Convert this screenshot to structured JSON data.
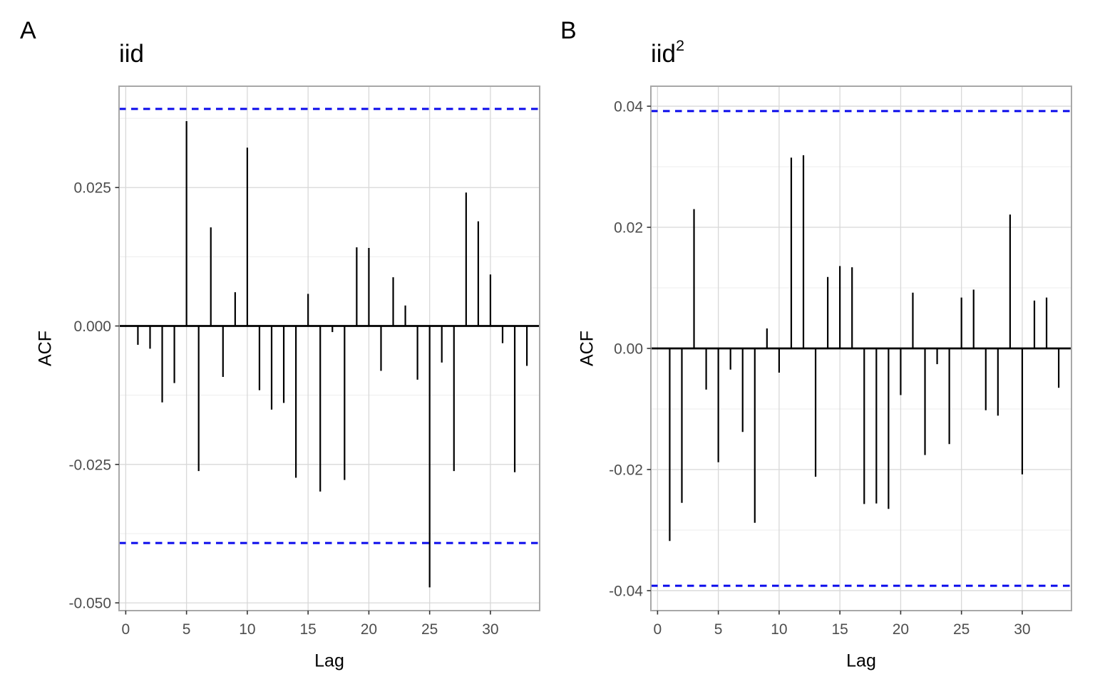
{
  "figure": {
    "background": "#FFFFFF",
    "bar_color": "#000000",
    "zero_line_color": "#000000",
    "conf_line_color": "#0B0BEB",
    "grid_major_color": "#D8D8D8",
    "grid_minor_color": "#EDEDED",
    "panel_border_color": "#A8A8A8",
    "tick_mark_color": "#333333",
    "tick_label_color": "#4D4D4D",
    "axis_title_color": "#000000"
  },
  "chart_data": [
    {
      "type": "bar",
      "panel_tag": "A",
      "title": "iid",
      "title_superscript": "",
      "xlabel": "Lag",
      "ylabel": "ACF",
      "legend": "none",
      "grid": true,
      "confidence_bounds": [
        -0.0392,
        0.0392
      ],
      "conf_line_style": "dashed",
      "xlim": [
        -0.55,
        34.05
      ],
      "ylim": [
        -0.0514,
        0.0433
      ],
      "x_ticks": [
        0,
        5,
        10,
        15,
        20,
        25,
        30
      ],
      "y_ticks": {
        "values": [
          0.025,
          0.0,
          -0.025,
          -0.05
        ],
        "labels": [
          "0.025",
          "0.000",
          "-0.025",
          "-0.050"
        ]
      },
      "y_minor_gridlines": [
        0.0375,
        0.0125,
        -0.0125,
        -0.0375
      ],
      "x": [
        1,
        2,
        3,
        4,
        5,
        6,
        7,
        8,
        9,
        10,
        11,
        12,
        13,
        14,
        15,
        16,
        17,
        18,
        19,
        20,
        21,
        22,
        23,
        24,
        25,
        26,
        27,
        28,
        29,
        30,
        31,
        32,
        33
      ],
      "values": [
        -0.0034,
        -0.0041,
        -0.0138,
        -0.0103,
        0.037,
        -0.0262,
        0.0178,
        -0.0092,
        0.0061,
        0.0322,
        -0.0116,
        -0.0151,
        -0.0139,
        -0.0274,
        0.0058,
        -0.0299,
        -0.0011,
        -0.0278,
        0.0142,
        0.0141,
        -0.0081,
        0.0088,
        0.0037,
        -0.0097,
        -0.0472,
        -0.0066,
        -0.0262,
        0.0241,
        0.0189,
        0.0093,
        -0.0031,
        -0.0264,
        -0.0072
      ]
    },
    {
      "type": "bar",
      "panel_tag": "B",
      "title": "iid",
      "title_superscript": "2",
      "xlabel": "Lag",
      "ylabel": "ACF",
      "legend": "none",
      "grid": true,
      "confidence_bounds": [
        -0.0392,
        0.0392
      ],
      "conf_line_style": "dashed",
      "xlim": [
        -0.55,
        34.05
      ],
      "ylim": [
        -0.0433,
        0.0433
      ],
      "x_ticks": [
        0,
        5,
        10,
        15,
        20,
        25,
        30
      ],
      "y_ticks": {
        "values": [
          0.04,
          0.02,
          0.0,
          -0.02,
          -0.04
        ],
        "labels": [
          "0.04",
          "0.02",
          "0.00",
          "-0.02",
          "-0.04"
        ]
      },
      "y_minor_gridlines": [
        0.03,
        0.01,
        -0.01,
        -0.03
      ],
      "x": [
        1,
        2,
        3,
        4,
        5,
        6,
        7,
        8,
        9,
        10,
        11,
        12,
        13,
        14,
        15,
        16,
        17,
        18,
        19,
        20,
        21,
        22,
        23,
        24,
        25,
        26,
        27,
        28,
        29,
        30,
        31,
        32,
        33
      ],
      "values": [
        -0.0318,
        -0.0255,
        0.023,
        -0.0068,
        -0.0188,
        -0.0035,
        -0.0138,
        -0.0288,
        0.0033,
        -0.004,
        0.0315,
        0.0319,
        -0.0212,
        0.0118,
        0.0136,
        0.0134,
        -0.0257,
        -0.0256,
        -0.0265,
        -0.0077,
        0.0092,
        -0.0176,
        -0.0026,
        -0.0158,
        0.0084,
        0.0097,
        -0.0102,
        -0.0111,
        0.0221,
        -0.0208,
        0.0079,
        0.0084,
        -0.0065
      ]
    }
  ]
}
